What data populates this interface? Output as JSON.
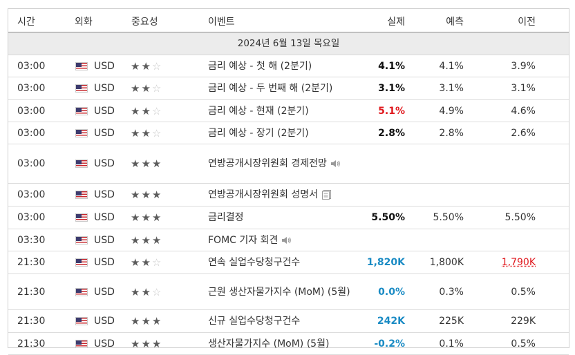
{
  "header": {
    "time": "시간",
    "currency": "외화",
    "importance": "중요성",
    "event": "이벤트",
    "actual": "실제",
    "forecast": "예측",
    "previous": "이전"
  },
  "date_label": "2024년 6월 13일 목요일",
  "rows": [
    {
      "time": "03:00",
      "currency": "USD",
      "stars": 2,
      "event": "금리 예상 - 첫 해 (2분기)",
      "icon": null,
      "actual": "4.1%",
      "actual_color": "black",
      "forecast": "4.1%",
      "previous": "3.9%"
    },
    {
      "time": "03:00",
      "currency": "USD",
      "stars": 2,
      "event": "금리 예상 - 두 번째 해 (2분기)",
      "icon": null,
      "actual": "3.1%",
      "actual_color": "black",
      "forecast": "3.1%",
      "previous": "3.1%"
    },
    {
      "time": "03:00",
      "currency": "USD",
      "stars": 2,
      "event": "금리 예상 - 현재 (2분기)",
      "icon": null,
      "actual": "5.1%",
      "actual_color": "red",
      "forecast": "4.9%",
      "previous": "4.6%"
    },
    {
      "time": "03:00",
      "currency": "USD",
      "stars": 2,
      "event": "금리 예상 - 장기 (2분기)",
      "icon": null,
      "actual": "2.8%",
      "actual_color": "black",
      "forecast": "2.8%",
      "previous": "2.6%"
    },
    {
      "time": "03:00",
      "currency": "USD",
      "stars": 3,
      "event": "연방공개시장위원회 경제전망",
      "icon": "speaker-icon",
      "actual": "",
      "actual_color": "black",
      "forecast": "",
      "previous": ""
    },
    {
      "time": "03:00",
      "currency": "USD",
      "stars": 3,
      "event": "연방공개시장위원회 성명서",
      "icon": "document-icon",
      "actual": "",
      "actual_color": "black",
      "forecast": "",
      "previous": ""
    },
    {
      "time": "03:00",
      "currency": "USD",
      "stars": 3,
      "event": "금리결정",
      "icon": null,
      "actual": "5.50%",
      "actual_color": "black",
      "forecast": "5.50%",
      "previous": "5.50%"
    },
    {
      "time": "03:30",
      "currency": "USD",
      "stars": 3,
      "event": "FOMC 기자 회견",
      "icon": "speaker-icon",
      "actual": "",
      "actual_color": "black",
      "forecast": "",
      "previous": ""
    },
    {
      "time": "21:30",
      "currency": "USD",
      "stars": 2,
      "event": "연속 실업수당청구건수",
      "icon": null,
      "actual": "1,820K",
      "actual_color": "blue",
      "forecast": "1,800K",
      "previous": "1,790K",
      "previous_color": "red"
    },
    {
      "time": "21:30",
      "currency": "USD",
      "stars": 2,
      "event": "근원 생산자물가지수 (MoM) (5월)",
      "icon": null,
      "actual": "0.0%",
      "actual_color": "blue",
      "forecast": "0.3%",
      "previous": "0.5%"
    },
    {
      "time": "21:30",
      "currency": "USD",
      "stars": 3,
      "event": "신규 실업수당청구건수",
      "icon": null,
      "actual": "242K",
      "actual_color": "blue",
      "forecast": "225K",
      "previous": "229K"
    },
    {
      "time": "21:30",
      "currency": "USD",
      "stars": 3,
      "event": "생산자물가지수 (MoM) (5월)",
      "icon": null,
      "actual": "-0.2%",
      "actual_color": "blue",
      "forecast": "0.1%",
      "previous": "0.5%"
    }
  ],
  "colors": {
    "red": "#e0191e",
    "blue": "#1a8bc4",
    "black": "#111111",
    "header_line": "#8a8a8a",
    "date_bg": "#ececec"
  }
}
